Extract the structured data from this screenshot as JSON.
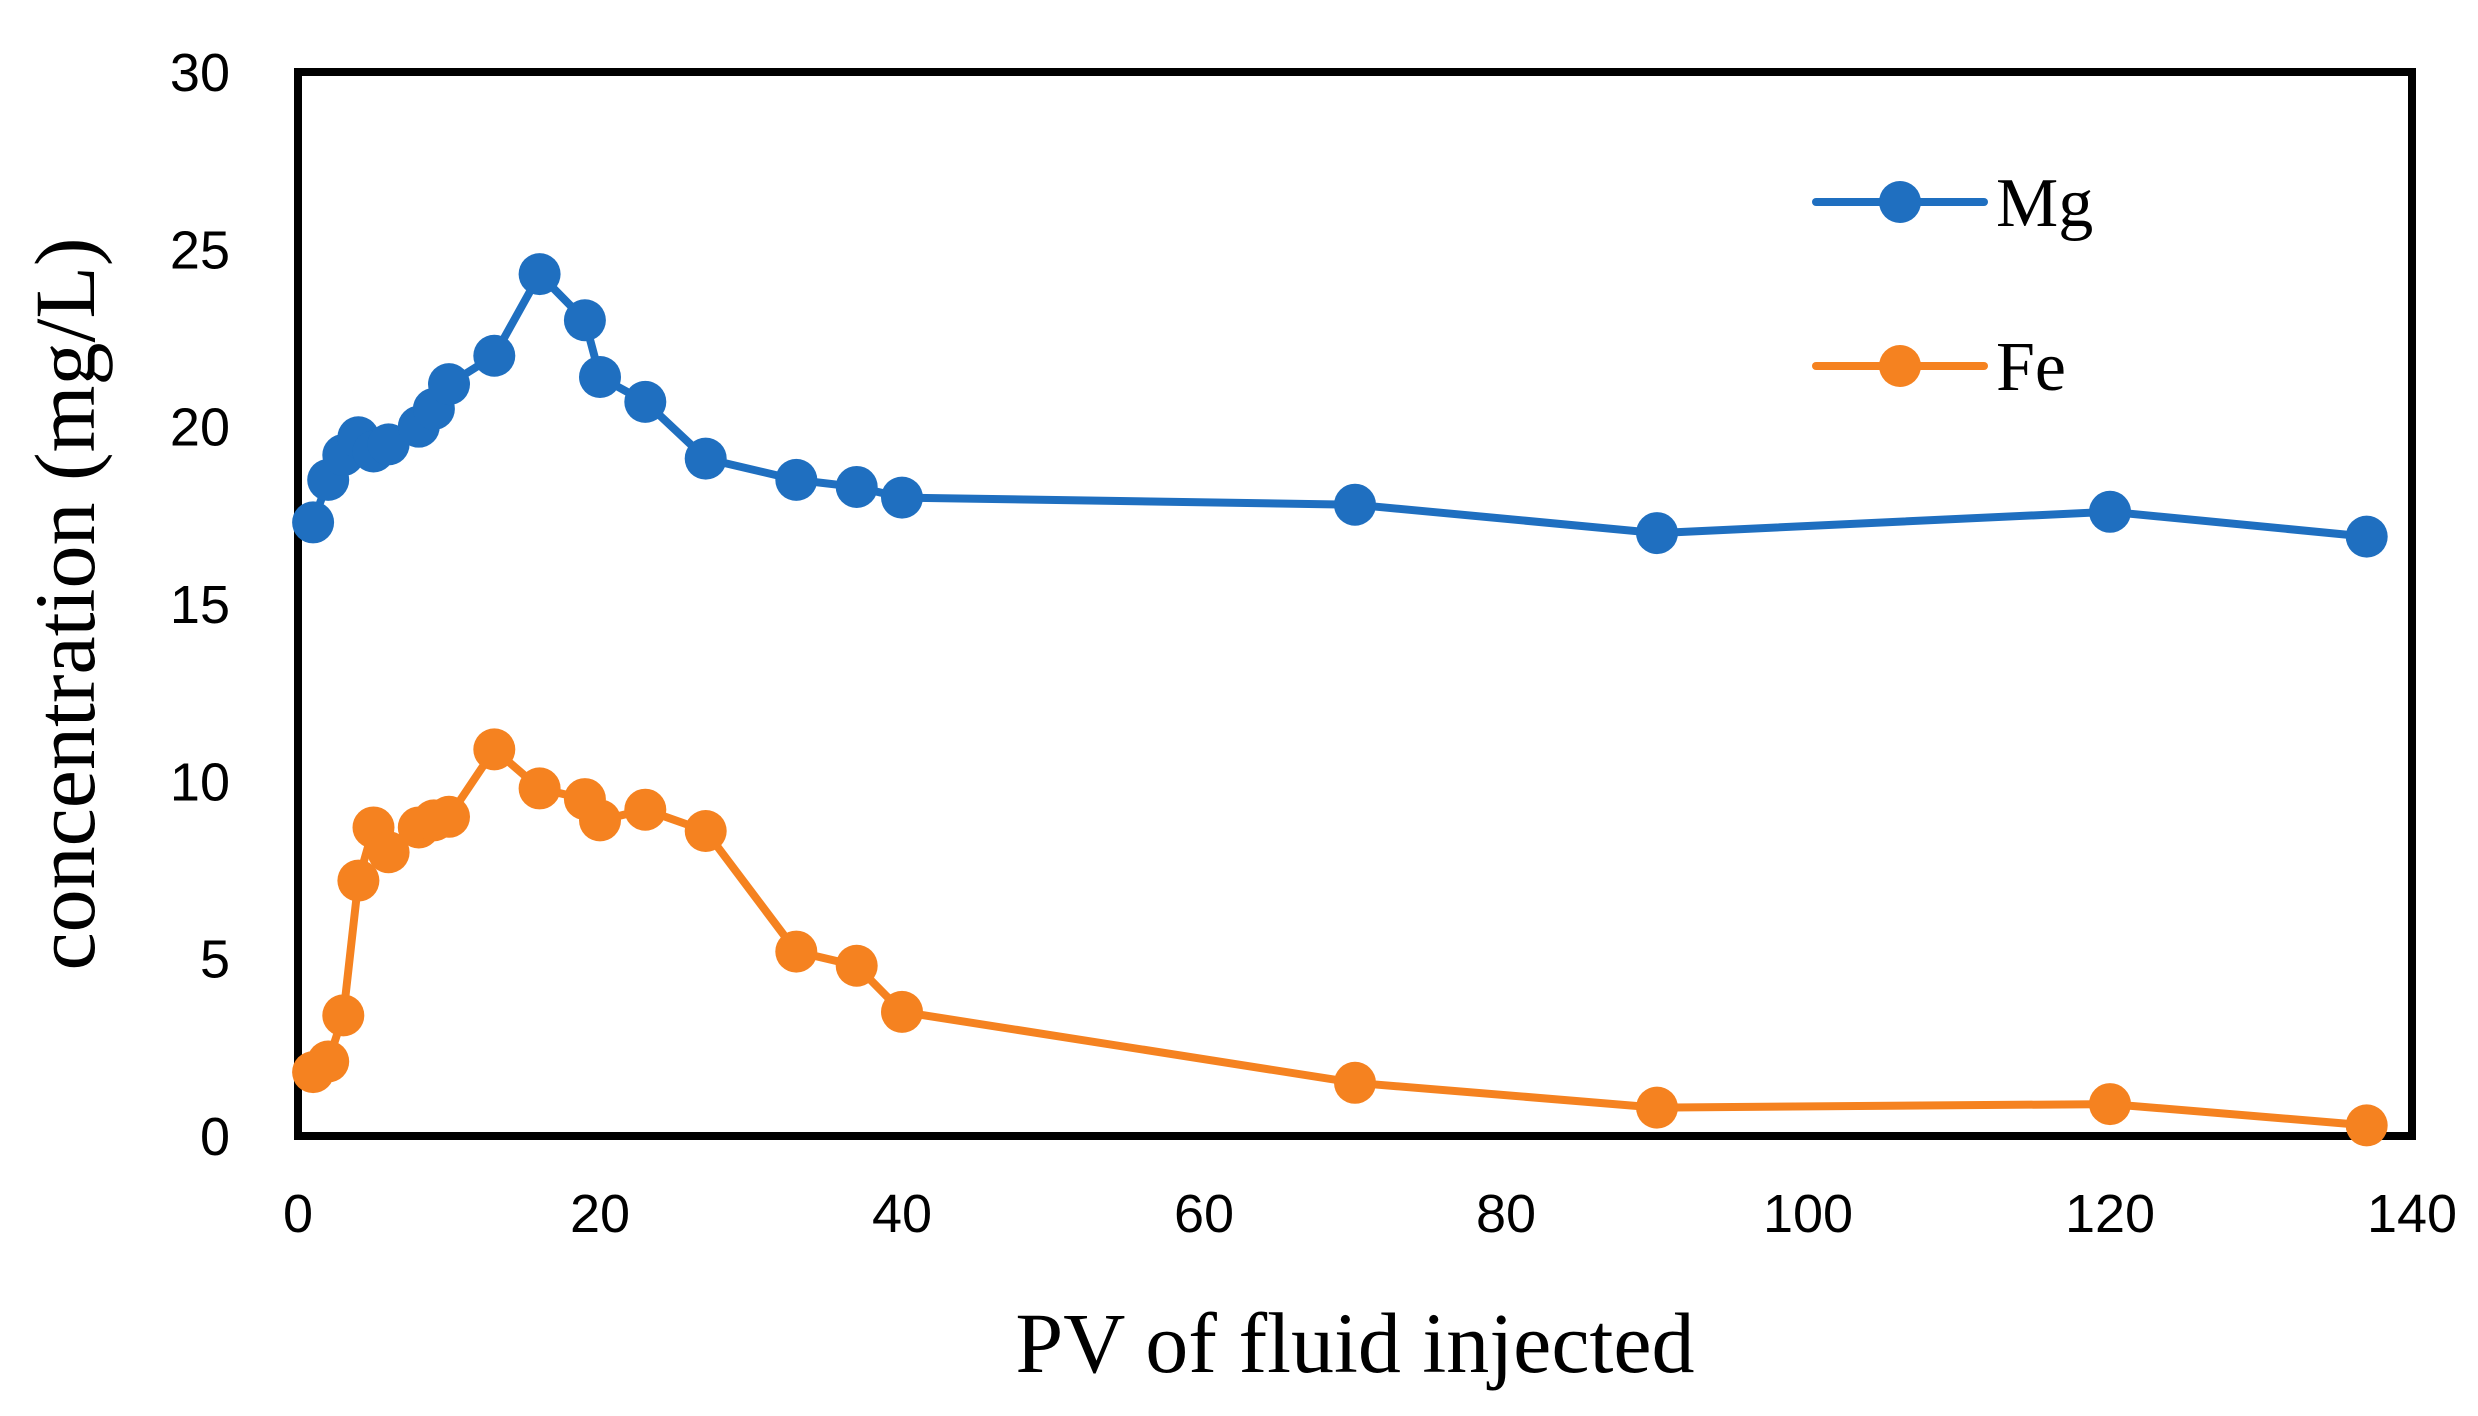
{
  "chart_data": {
    "type": "line",
    "title": "",
    "xlabel": "PV of fluid injected",
    "ylabel": "concentration (mg/L)",
    "xlim": [
      0,
      140
    ],
    "ylim": [
      0,
      30
    ],
    "xticks": [
      0,
      20,
      40,
      60,
      80,
      100,
      120,
      140
    ],
    "yticks": [
      0,
      5,
      10,
      15,
      20,
      25,
      30
    ],
    "grid": false,
    "legend_position": "top-right",
    "series": [
      {
        "name": "Mg",
        "color": "#1f6fc0",
        "x": [
          1,
          2,
          3,
          4,
          5,
          6,
          8,
          9,
          10,
          13,
          16,
          19,
          20,
          23,
          27,
          33,
          37,
          40,
          70,
          90,
          120,
          137
        ],
        "y": [
          17.3,
          18.5,
          19.2,
          19.7,
          19.3,
          19.5,
          20.0,
          20.5,
          21.2,
          22.0,
          24.3,
          23.0,
          21.4,
          20.7,
          19.1,
          18.5,
          18.3,
          18.0,
          17.8,
          17.0,
          17.6,
          16.9
        ]
      },
      {
        "name": "Fe",
        "color": "#f58220",
        "x": [
          1,
          2,
          3,
          4,
          5,
          6,
          8,
          9,
          10,
          13,
          16,
          19,
          20,
          23,
          27,
          33,
          37,
          40,
          70,
          90,
          120,
          137
        ],
        "y": [
          1.8,
          2.1,
          3.4,
          7.2,
          8.7,
          8.0,
          8.7,
          8.9,
          9.0,
          10.9,
          9.8,
          9.5,
          8.9,
          9.2,
          8.6,
          5.2,
          4.8,
          3.5,
          1.5,
          0.8,
          0.9,
          0.3
        ]
      }
    ]
  }
}
